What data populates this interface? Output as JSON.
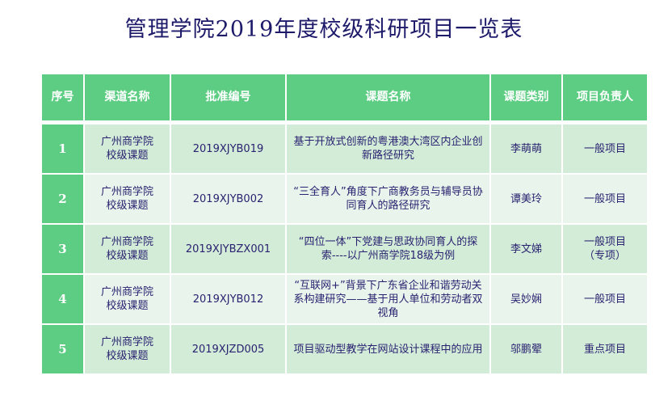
{
  "title": "管理学院2019年度校级科研项目一览表",
  "headers": [
    "序号",
    "渠道名称",
    "批准编号",
    "课题名称",
    "课题类别",
    "项目负责人"
  ],
  "rows": [
    {
      "no": "1",
      "channel": "广州商学院校级课题",
      "code": "2019XJYB019",
      "topic": "基于开放式创新的粤港澳大湾区内企业创新路径研究",
      "leader": "李萌萌",
      "category": "一般项目"
    },
    {
      "no": "2",
      "channel": "广州商学院校级课题",
      "code": "2019XJYB002",
      "topic": "“三全育人”角度下广商教务员与辅导员协同育人的路径研究",
      "leader": "谭美玲",
      "category": "一般项目"
    },
    {
      "no": "3",
      "channel": "广州商学院校级课题",
      "code": "2019XJYBZX001",
      "topic": "“四位一体”下党建与思政协同育人的探索----以广州商学院18级为例",
      "leader": "李文娣",
      "category": "一般项目（专项）"
    },
    {
      "no": "4",
      "channel": "广州商学院校级课题",
      "code": "2019XJYB012",
      "topic": "“互联网+”背景下广东省企业和谐劳动关系构建研究——基于用人单位和劳动者双视角",
      "leader": "吴妙娴",
      "category": "一般项目"
    },
    {
      "no": "5",
      "channel": "广州商学院校级课题",
      "code": "2019XJZD005",
      "topic": "项目驱动型教学在网站设计课程中的应用",
      "leader": "邬鹏翚",
      "category": "重点项目"
    }
  ],
  "colors": {
    "header": "#5ccd82",
    "row_odd": "#d2ecd8",
    "row_even": "#e9f5ec",
    "text": "#2a2270"
  }
}
